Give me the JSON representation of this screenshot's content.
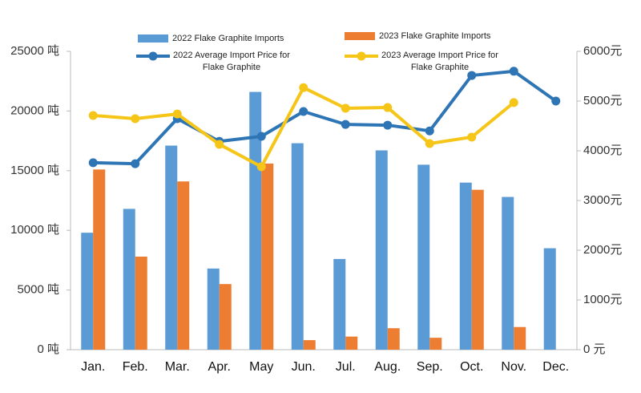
{
  "chart_data": {
    "type": "bar",
    "categories": [
      "Jan.",
      "Feb.",
      "Mar.",
      "Apr.",
      "May",
      "Jun.",
      "Jul.",
      "Aug.",
      "Sep.",
      "Oct.",
      "Nov.",
      "Dec."
    ],
    "series": [
      {
        "name": "2022 Flake Graphite Imports",
        "type": "bar",
        "color": "#5b9bd5",
        "values": [
          9800,
          11800,
          17100,
          6800,
          21600,
          17300,
          7600,
          16700,
          15500,
          14000,
          12800,
          8500
        ]
      },
      {
        "name": "2023 Flake Graphite Imports",
        "type": "bar",
        "color": "#ed7d31",
        "values": [
          15100,
          7800,
          14100,
          5500,
          15600,
          800,
          1100,
          1800,
          1000,
          13400,
          1900,
          null
        ]
      },
      {
        "name": "2022 Average Import Price for Flake Graphite",
        "type": "line",
        "axis": "y2",
        "color": "#2e75b6",
        "values": [
          3760,
          3740,
          4645,
          4190,
          4290,
          4790,
          4530,
          4515,
          4400,
          5515,
          5600,
          5000
        ]
      },
      {
        "name": "2023 Average Import Price for Flake Graphite",
        "type": "line",
        "axis": "y2",
        "color": "#f5c518",
        "values": [
          4710,
          4645,
          4740,
          4130,
          3680,
          5270,
          4855,
          4870,
          4145,
          4275,
          4970,
          null
        ]
      }
    ],
    "ylim": [
      0,
      25000
    ],
    "yticks": [
      {
        "value": 0,
        "label": "0 吨"
      },
      {
        "value": 5000,
        "label": "5000 吨"
      },
      {
        "value": 10000,
        "label": "10000 吨"
      },
      {
        "value": 15000,
        "label": "15000 吨"
      },
      {
        "value": 20000,
        "label": "20000 吨"
      },
      {
        "value": 25000,
        "label": "25000 吨"
      }
    ],
    "y2lim": [
      0,
      6000
    ],
    "y2ticks": [
      {
        "value": 0,
        "label": "0 元"
      },
      {
        "value": 1000,
        "label": "1000元"
      },
      {
        "value": 2000,
        "label": "2000元"
      },
      {
        "value": 3000,
        "label": "3000元"
      },
      {
        "value": 4000,
        "label": "4000元"
      },
      {
        "value": 5000,
        "label": "5000元"
      },
      {
        "value": 6000,
        "label": "6000元"
      }
    ]
  }
}
